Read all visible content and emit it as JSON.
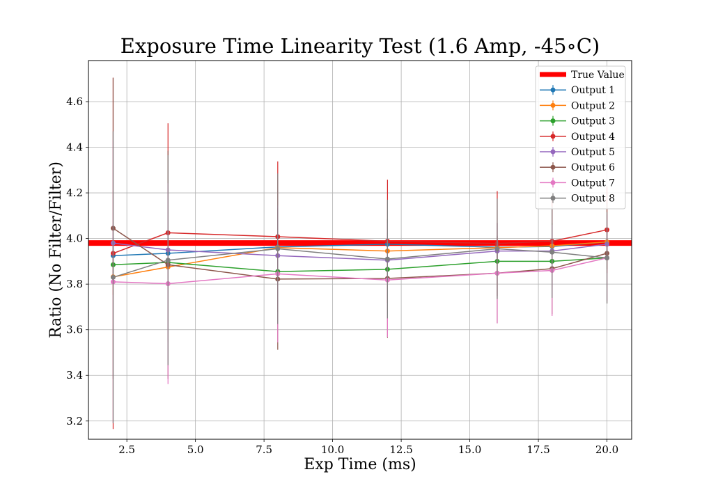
{
  "chart_data": {
    "type": "line",
    "title": "Exposure Time Linearity Test (1.6 Amp, -45$^\\circ$C)",
    "title_display": "Exposure Time Linearity Test (1.6 Amp, -45∘C)",
    "xlabel": "Exp Time (ms)",
    "ylabel": "Ratio (No Filter/Filter)",
    "xlim": [
      1.1,
      20.9
    ],
    "ylim": [
      3.12,
      4.78
    ],
    "xticks": [
      2.5,
      5.0,
      7.5,
      10.0,
      12.5,
      15.0,
      17.5,
      20.0
    ],
    "xtick_labels": [
      "2.5",
      "5.0",
      "7.5",
      "10.0",
      "12.5",
      "15.0",
      "17.5",
      "20.0"
    ],
    "yticks": [
      3.2,
      3.4,
      3.6,
      3.8,
      4.0,
      4.2,
      4.4,
      4.6
    ],
    "ytick_labels": [
      "3.2",
      "3.4",
      "3.6",
      "3.8",
      "4.0",
      "4.2",
      "4.4",
      "4.6"
    ],
    "grid": true,
    "legend_position": "top-right",
    "x": [
      2,
      4,
      8,
      12,
      16,
      18,
      20
    ],
    "true_value": {
      "name": "True Value",
      "value": 3.98,
      "color": "#ff0000"
    },
    "series": [
      {
        "name": "Output 1",
        "color": "#1f77b4",
        "values": [
          3.925,
          3.935,
          3.963,
          3.975,
          3.962,
          3.965,
          3.985
        ],
        "errors": [
          0.08,
          0.07,
          0.06,
          0.05,
          0.05,
          0.05,
          0.05
        ]
      },
      {
        "name": "Output 2",
        "color": "#ff7f0e",
        "values": [
          3.832,
          3.875,
          3.96,
          3.945,
          3.96,
          3.968,
          3.985
        ],
        "errors": [
          0.08,
          0.07,
          0.06,
          0.05,
          0.05,
          0.05,
          0.05
        ]
      },
      {
        "name": "Output 3",
        "color": "#2ca02c",
        "values": [
          3.885,
          3.895,
          3.855,
          3.865,
          3.9,
          3.9,
          3.915
        ],
        "errors": [
          0.08,
          0.07,
          0.06,
          0.05,
          0.05,
          0.05,
          0.05
        ]
      },
      {
        "name": "Output 4",
        "color": "#d62728",
        "values": [
          3.935,
          4.025,
          4.008,
          3.988,
          3.978,
          3.988,
          4.038
        ],
        "errors": [
          0.77,
          0.48,
          0.33,
          0.27,
          0.23,
          0.2,
          0.19
        ]
      },
      {
        "name": "Output 5",
        "color": "#9467bd",
        "values": [
          3.98,
          3.95,
          3.925,
          3.905,
          3.945,
          3.945,
          3.975
        ],
        "errors": [
          0.08,
          0.07,
          0.06,
          0.05,
          0.05,
          0.05,
          0.05
        ]
      },
      {
        "name": "Output 6",
        "color": "#8c564b",
        "values": [
          4.045,
          3.885,
          3.822,
          3.825,
          3.848,
          3.868,
          3.935
        ],
        "errors": [
          0.66,
          0.5,
          0.31,
          0.26,
          0.22,
          0.2,
          0.22
        ]
      },
      {
        "name": "Output 7",
        "color": "#e377c2",
        "values": [
          3.81,
          3.802,
          3.845,
          3.818,
          3.848,
          3.86,
          3.915
        ],
        "errors": [
          0.62,
          0.44,
          0.3,
          0.25,
          0.22,
          0.2,
          0.19
        ]
      },
      {
        "name": "Output 8",
        "color": "#7f7f7f",
        "values": [
          3.83,
          3.905,
          3.955,
          3.91,
          3.955,
          3.94,
          3.915
        ],
        "errors": [
          0.64,
          0.46,
          0.33,
          0.26,
          0.22,
          0.2,
          0.2
        ]
      }
    ]
  }
}
